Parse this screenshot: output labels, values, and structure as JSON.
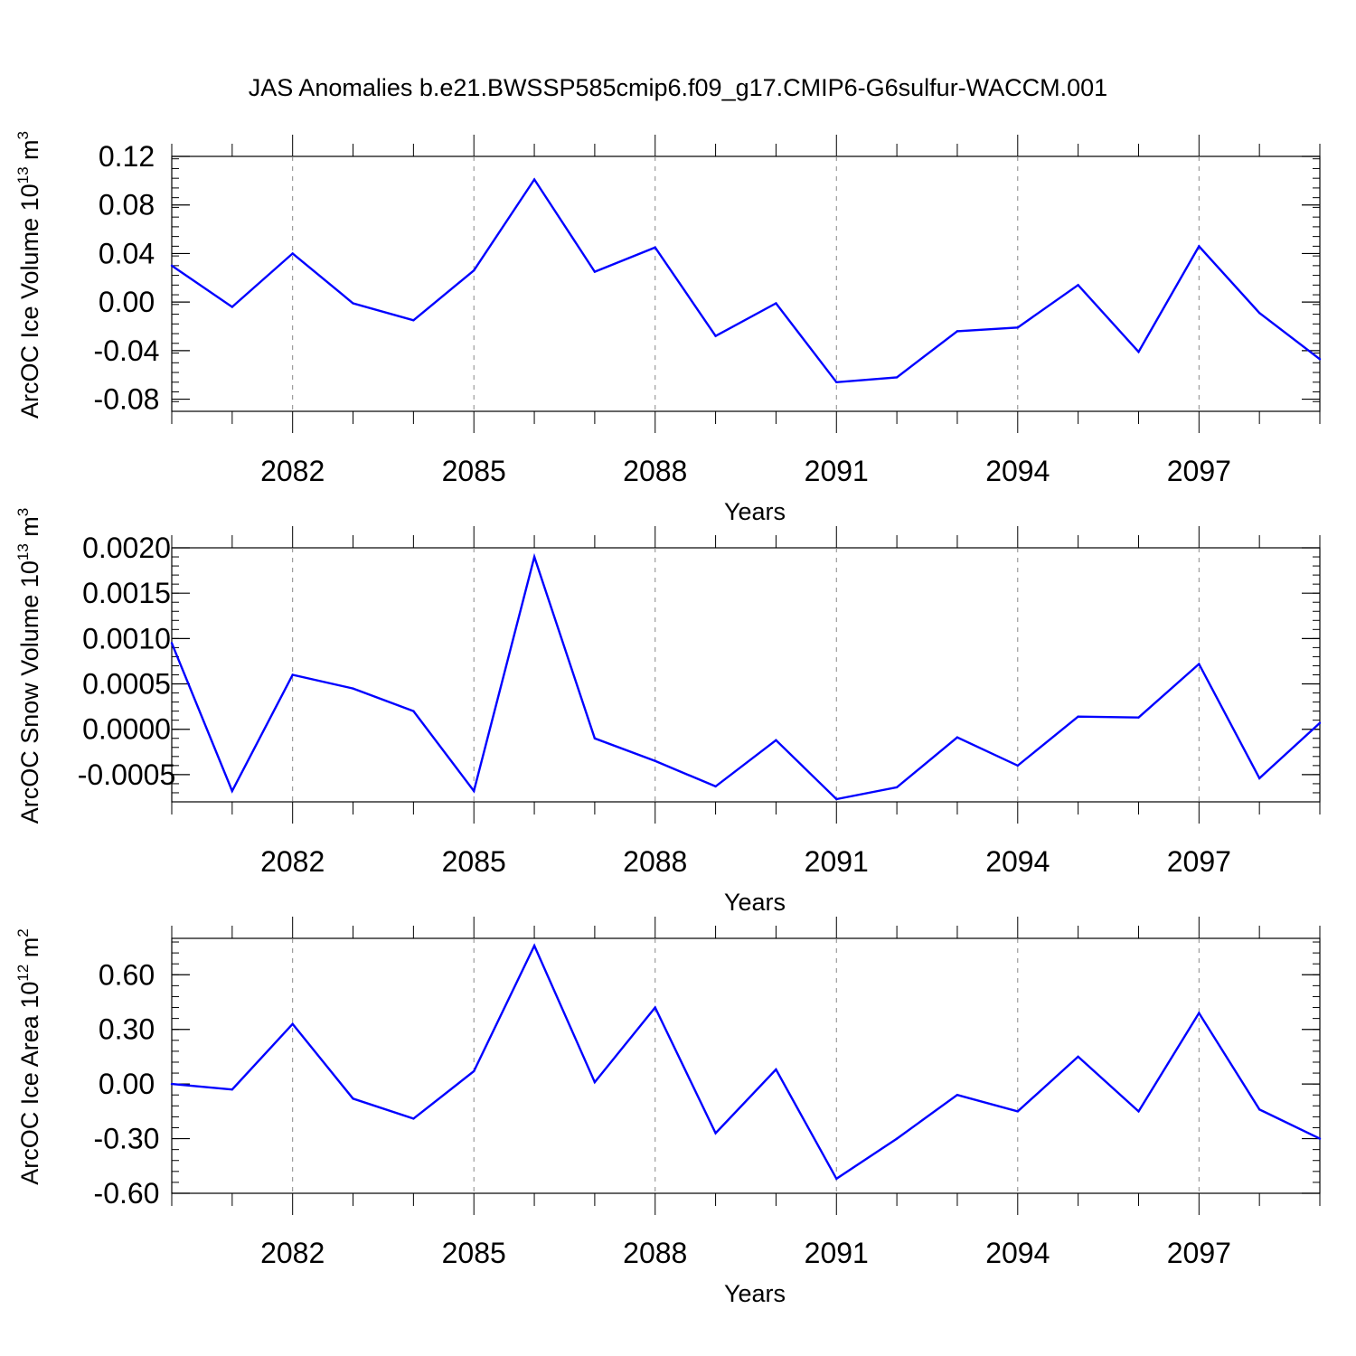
{
  "title": "JAS Anomalies b.e21.BWSSP585cmip6.f09_g17.CMIP6-G6sulfur-WACCM.001",
  "chart_data": [
    {
      "type": "line",
      "xlabel": "Years",
      "ylabel": "ArcOC Ice Volume 10",
      "ylabel_exp": "13",
      "ylabel_unit": "m",
      "ylabel_unit_exp": "3",
      "xlim": [
        2080,
        2099
      ],
      "ylim": [
        -0.09,
        0.12
      ],
      "xticks": [
        "2082",
        "2085",
        "2088",
        "2091",
        "2094",
        "2097"
      ],
      "xtick_values": [
        2082,
        2085,
        2088,
        2091,
        2094,
        2097
      ],
      "yticks": [
        "0.12",
        "0.08",
        "0.04",
        "0.00",
        "-0.04",
        "-0.08"
      ],
      "ytick_values": [
        0.12,
        0.08,
        0.04,
        0.0,
        -0.04,
        -0.08
      ],
      "grid": "vertical dashed at major x ticks",
      "color": "#0000ff",
      "x": [
        2080,
        2081,
        2082,
        2083,
        2084,
        2085,
        2086,
        2087,
        2088,
        2089,
        2090,
        2091,
        2092,
        2093,
        2094,
        2095,
        2096,
        2097,
        2098,
        2099
      ],
      "values": [
        0.03,
        -0.004,
        0.04,
        -0.001,
        -0.015,
        0.026,
        0.101,
        0.025,
        0.045,
        -0.028,
        -0.001,
        -0.066,
        -0.062,
        -0.024,
        -0.021,
        0.014,
        -0.041,
        0.046,
        -0.009,
        -0.047
      ]
    },
    {
      "type": "line",
      "xlabel": "Years",
      "ylabel": "ArcOC Snow Volume 10",
      "ylabel_exp": "13",
      "ylabel_unit": "m",
      "ylabel_unit_exp": "3",
      "xlim": [
        2080,
        2099
      ],
      "ylim": [
        -0.0008,
        0.002
      ],
      "xticks": [
        "2082",
        "2085",
        "2088",
        "2091",
        "2094",
        "2097"
      ],
      "xtick_values": [
        2082,
        2085,
        2088,
        2091,
        2094,
        2097
      ],
      "yticks": [
        "0.0020",
        "0.0015",
        "0.0010",
        "0.0005",
        "0.0000",
        "-0.0005"
      ],
      "ytick_values": [
        0.002,
        0.0015,
        0.001,
        0.0005,
        0.0,
        -0.0005
      ],
      "grid": "vertical dashed at major x ticks",
      "color": "#0000ff",
      "x": [
        2080,
        2081,
        2082,
        2083,
        2084,
        2085,
        2086,
        2087,
        2088,
        2089,
        2090,
        2091,
        2092,
        2093,
        2094,
        2095,
        2096,
        2097,
        2098,
        2099
      ],
      "values": [
        0.00095,
        -0.00068,
        0.0006,
        0.00045,
        0.0002,
        -0.00068,
        0.0019,
        -0.0001,
        -0.00035,
        -0.00063,
        -0.00012,
        -0.00077,
        -0.00064,
        -9e-05,
        -0.0004,
        0.00014,
        0.00013,
        0.00072,
        -0.00054,
        7e-05
      ]
    },
    {
      "type": "line",
      "xlabel": "Years",
      "ylabel": "ArcOC Ice Area 10",
      "ylabel_exp": "12",
      "ylabel_unit": "m",
      "ylabel_unit_exp": "2",
      "xlim": [
        2080,
        2099
      ],
      "ylim": [
        -0.6,
        0.8
      ],
      "xticks": [
        "2082",
        "2085",
        "2088",
        "2091",
        "2094",
        "2097"
      ],
      "xtick_values": [
        2082,
        2085,
        2088,
        2091,
        2094,
        2097
      ],
      "yticks": [
        "0.60",
        "0.30",
        "0.00",
        "-0.30",
        "-0.60"
      ],
      "ytick_values": [
        0.6,
        0.3,
        0.0,
        -0.3,
        -0.6
      ],
      "grid": "vertical dashed at major x ticks",
      "color": "#0000ff",
      "x": [
        2080,
        2081,
        2082,
        2083,
        2084,
        2085,
        2086,
        2087,
        2088,
        2089,
        2090,
        2091,
        2092,
        2093,
        2094,
        2095,
        2096,
        2097,
        2098,
        2099
      ],
      "values": [
        0.0,
        -0.03,
        0.33,
        -0.08,
        -0.19,
        0.07,
        0.76,
        0.01,
        0.42,
        -0.27,
        0.08,
        -0.52,
        -0.3,
        -0.06,
        -0.15,
        0.15,
        -0.15,
        0.39,
        -0.14,
        -0.3
      ]
    }
  ]
}
